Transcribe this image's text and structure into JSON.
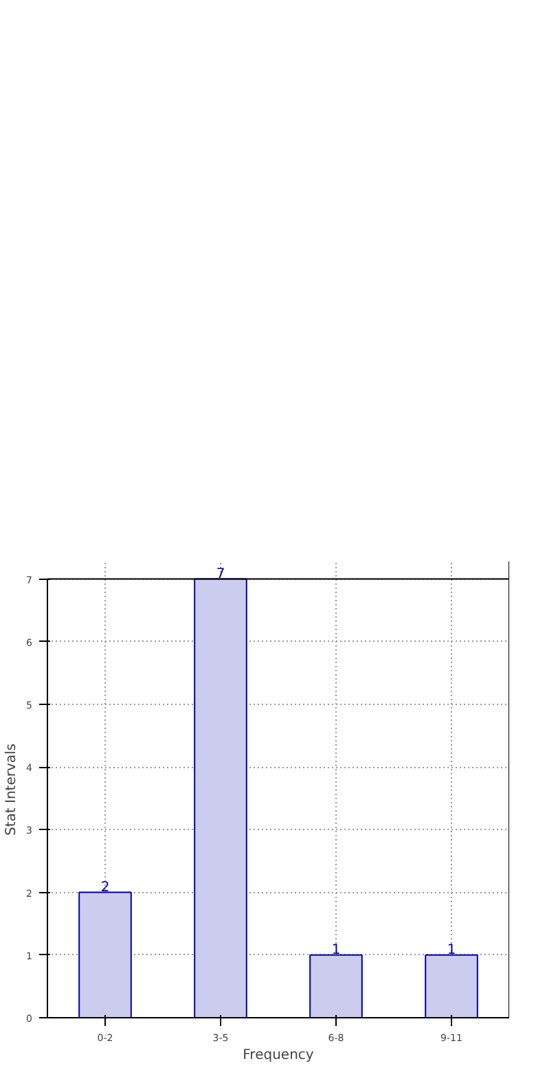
{
  "chart_data": {
    "type": "bar",
    "xlabel": "Frequency",
    "ylabel": "Stat Intervals",
    "categories": [
      "0-2",
      "3-5",
      "6-8",
      "9-11"
    ],
    "values": [
      2,
      7,
      1,
      1
    ],
    "color": "#ccccee",
    "ylim": [
      0,
      7
    ],
    "yticks": [
      0,
      1,
      2,
      3,
      4,
      5,
      6,
      7
    ],
    "grid": true,
    "data_labels": true
  }
}
